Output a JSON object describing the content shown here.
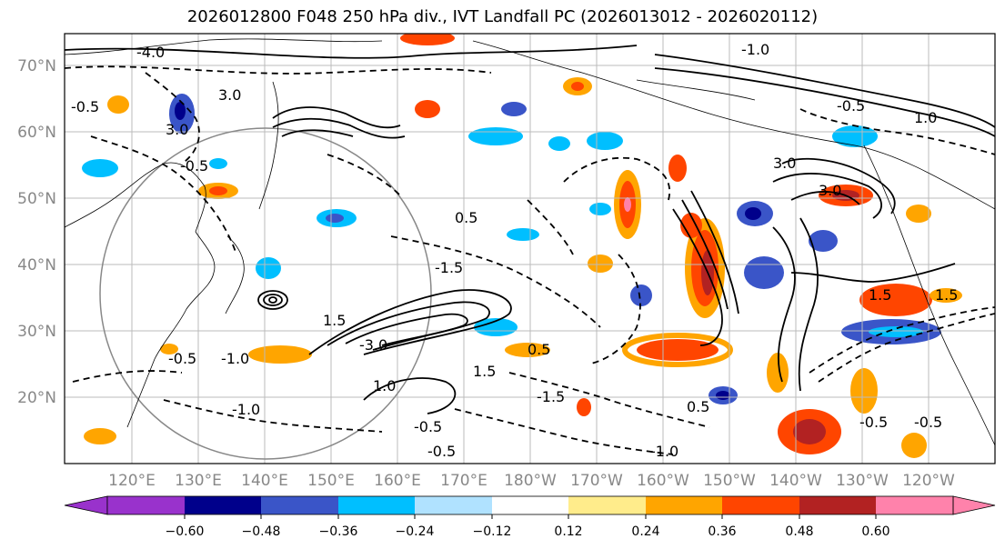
{
  "title": "2026012800 F048 250 hPa div., IVT Landfall PC (2026013012 - 2026020112)",
  "lat_labels": [
    "70°N",
    "60°N",
    "50°N",
    "40°N",
    "30°N",
    "20°N"
  ],
  "lon_labels": [
    "120°E",
    "130°E",
    "140°E",
    "150°E",
    "160°E",
    "170°E",
    "180°W",
    "170°W",
    "160°W",
    "150°W",
    "140°W",
    "130°W",
    "120°W"
  ],
  "colorbar": {
    "ticks": [
      "−0.60",
      "−0.48",
      "−0.36",
      "−0.24",
      "−0.12",
      "0.12",
      "0.24",
      "0.36",
      "0.48",
      "0.60"
    ],
    "colors": [
      "#9932cc",
      "#00008b",
      "#3a55c8",
      "#00bfff",
      "#b0e2ff",
      "#ffffff",
      "#ffec8b",
      "#ffa500",
      "#ff4500",
      "#b22222",
      "#ff82ab"
    ]
  },
  "contour_labels": [
    "-0.5",
    "3.0",
    "-4.0",
    "-0.5",
    "3.0",
    "-1.0",
    "-0.5",
    "1.5",
    "-3.0",
    "-0.5",
    "1.0",
    "-0.5",
    "-1.0",
    "-1.5",
    "1.5",
    "-1.0",
    "0.5",
    "3.0",
    "-0.5",
    "1.0",
    "-1.0",
    "-0.5",
    "1.5",
    "-0.5",
    "0.5",
    "3.0",
    "-1.5",
    "0.5",
    "1.5"
  ]
}
